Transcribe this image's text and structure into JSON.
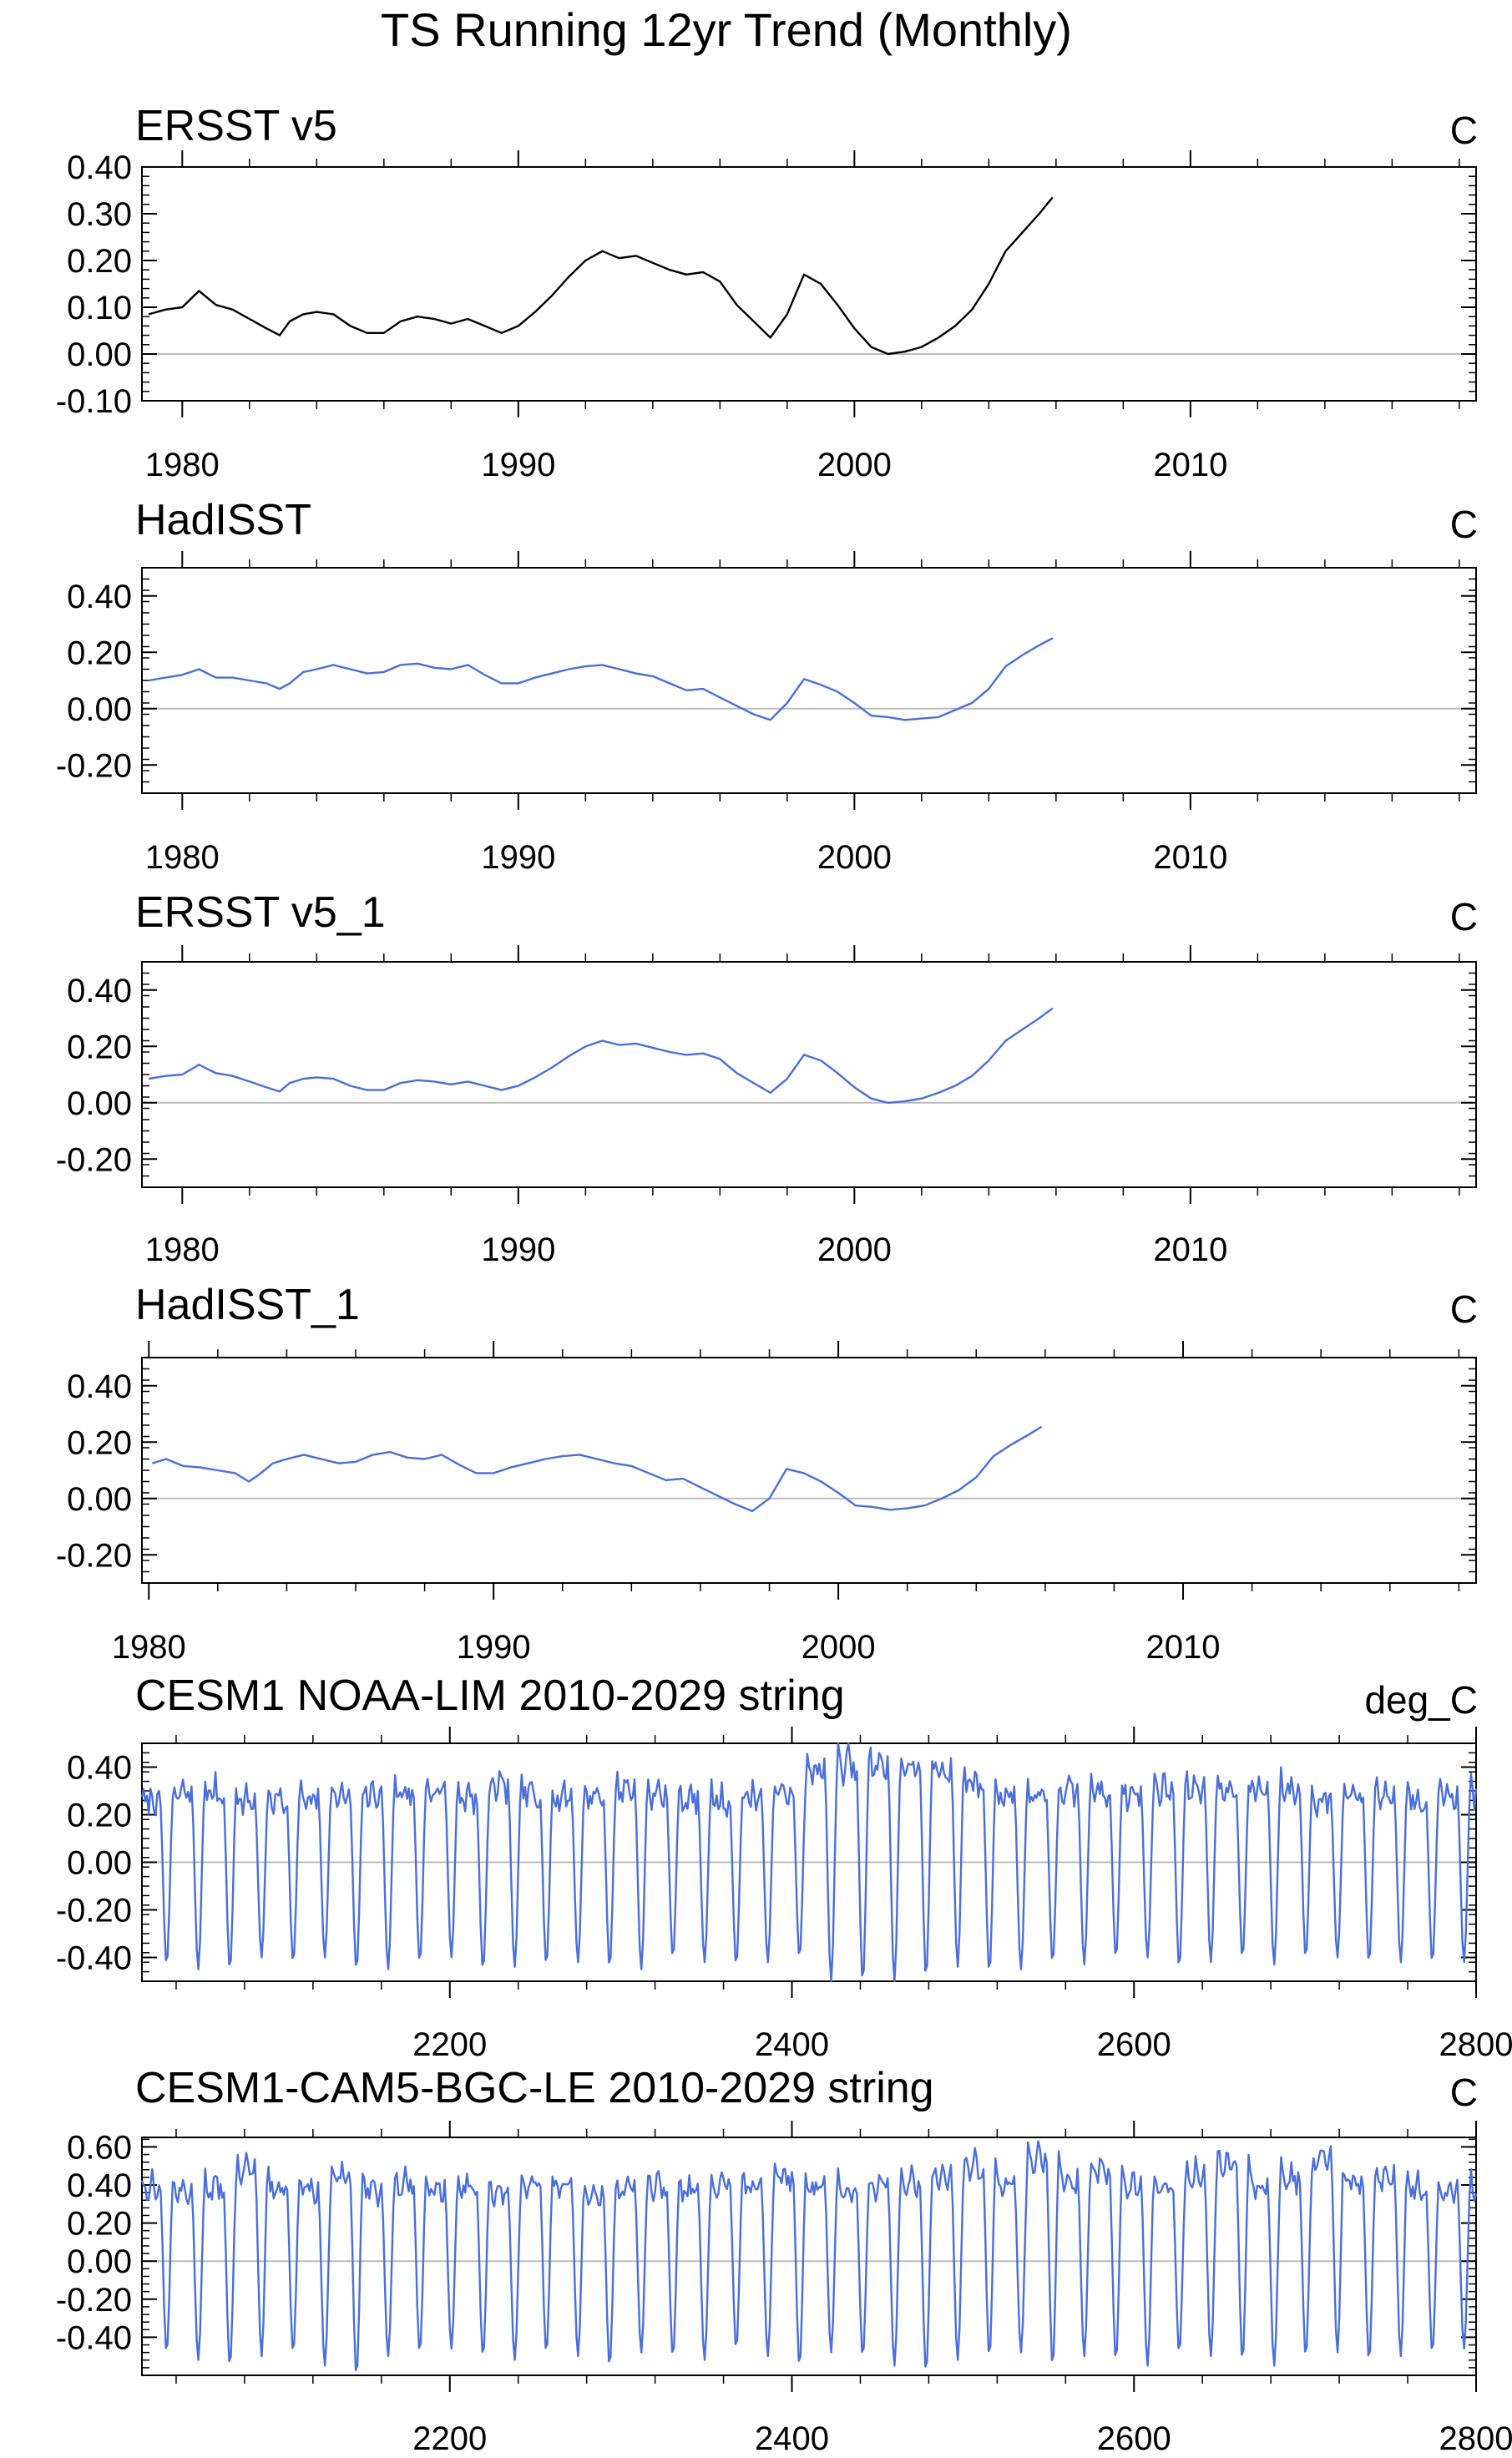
{
  "figure": {
    "title": "TS Running 12yr Trend (Monthly)"
  },
  "chart_data": [
    {
      "type": "line",
      "title": "ERSST v5",
      "units": "C",
      "line_color": "#000000",
      "xlim": [
        1978.8,
        2018.5
      ],
      "ylim": [
        -0.1,
        0.4
      ],
      "xticks": [
        1980,
        1990,
        2000,
        2010
      ],
      "yticks": [
        -0.1,
        0.0,
        0.1,
        0.2,
        0.3,
        0.4
      ],
      "ytick_labels": [
        "-0.10",
        "0.00",
        "0.10",
        "0.20",
        "0.30",
        "0.40"
      ],
      "series": [
        {
          "name": "ERSST v5",
          "x": [
            1979.0,
            1979.5,
            1980.0,
            1980.5,
            1981.0,
            1981.5,
            1982.0,
            1982.5,
            1982.9,
            1983.2,
            1983.6,
            1984.0,
            1984.5,
            1985.0,
            1985.5,
            1986.0,
            1986.5,
            1987.0,
            1987.5,
            1988.0,
            1988.5,
            1989.0,
            1989.5,
            1990.0,
            1990.5,
            1991.0,
            1991.5,
            1992.0,
            1992.5,
            1993.0,
            1993.5,
            1994.0,
            1994.5,
            1995.0,
            1995.5,
            1996.0,
            1996.5,
            1997.0,
            1997.5,
            1998.0,
            1998.5,
            1999.0,
            1999.5,
            2000.0,
            2000.5,
            2001.0,
            2001.5,
            2002.0,
            2002.5,
            2003.0,
            2003.5,
            2004.0,
            2004.5,
            2005.0,
            2005.5,
            2005.9
          ],
          "y": [
            0.085,
            0.095,
            0.1,
            0.135,
            0.105,
            0.095,
            0.075,
            0.055,
            0.04,
            0.07,
            0.085,
            0.09,
            0.085,
            0.06,
            0.045,
            0.045,
            0.07,
            0.08,
            0.075,
            0.065,
            0.075,
            0.06,
            0.045,
            0.06,
            0.09,
            0.125,
            0.165,
            0.2,
            0.22,
            0.205,
            0.21,
            0.195,
            0.18,
            0.17,
            0.175,
            0.155,
            0.105,
            0.07,
            0.035,
            0.085,
            0.17,
            0.15,
            0.105,
            0.055,
            0.015,
            0.0,
            0.005,
            0.015,
            0.035,
            0.06,
            0.095,
            0.15,
            0.22,
            0.26,
            0.3,
            0.335
          ]
        }
      ]
    },
    {
      "type": "line",
      "title": "HadISST",
      "units": "C",
      "line_color": "#4a6fdc",
      "xlim": [
        1978.8,
        2018.5
      ],
      "ylim": [
        -0.3,
        0.5
      ],
      "xticks": [
        1980,
        1990,
        2000,
        2010
      ],
      "yticks": [
        -0.2,
        0.0,
        0.2,
        0.4
      ],
      "ytick_labels": [
        "-0.20",
        "0.00",
        "0.20",
        "0.40"
      ],
      "series": [
        {
          "name": "HadISST",
          "x": [
            1979.0,
            1979.5,
            1980.0,
            1980.5,
            1981.0,
            1981.5,
            1982.0,
            1982.5,
            1982.9,
            1983.2,
            1983.6,
            1984.0,
            1984.5,
            1985.0,
            1985.5,
            1986.0,
            1986.5,
            1987.0,
            1987.5,
            1988.0,
            1988.5,
            1989.0,
            1989.5,
            1990.0,
            1990.5,
            1991.0,
            1991.5,
            1992.0,
            1992.5,
            1993.0,
            1993.5,
            1994.0,
            1994.5,
            1995.0,
            1995.5,
            1996.0,
            1996.5,
            1997.0,
            1997.5,
            1998.0,
            1998.5,
            1999.0,
            1999.5,
            2000.0,
            2000.5,
            2001.0,
            2001.5,
            2002.0,
            2002.5,
            2003.0,
            2003.5,
            2004.0,
            2004.5,
            2005.0,
            2005.5,
            2005.9
          ],
          "y": [
            0.1,
            0.11,
            0.12,
            0.14,
            0.11,
            0.11,
            0.1,
            0.09,
            0.07,
            0.09,
            0.13,
            0.14,
            0.155,
            0.14,
            0.125,
            0.13,
            0.155,
            0.16,
            0.145,
            0.14,
            0.155,
            0.12,
            0.09,
            0.09,
            0.11,
            0.125,
            0.14,
            0.15,
            0.155,
            0.14,
            0.125,
            0.115,
            0.09,
            0.065,
            0.07,
            0.04,
            0.01,
            -0.02,
            -0.04,
            0.02,
            0.105,
            0.085,
            0.06,
            0.02,
            -0.025,
            -0.03,
            -0.04,
            -0.035,
            -0.03,
            -0.005,
            0.02,
            0.07,
            0.15,
            0.19,
            0.225,
            0.25
          ]
        }
      ]
    },
    {
      "type": "line",
      "title": "ERSST v5_1",
      "units": "C",
      "line_color": "#4a6fdc",
      "xlim": [
        1978.8,
        2018.5
      ],
      "ylim": [
        -0.3,
        0.5
      ],
      "xticks": [
        1980,
        1990,
        2000,
        2010
      ],
      "yticks": [
        -0.2,
        0.0,
        0.2,
        0.4
      ],
      "ytick_labels": [
        "-0.20",
        "0.00",
        "0.20",
        "0.40"
      ],
      "series": [
        {
          "name": "ERSST v5_1",
          "x": [
            1979.0,
            1979.5,
            1980.0,
            1980.5,
            1981.0,
            1981.5,
            1982.0,
            1982.5,
            1982.9,
            1983.2,
            1983.6,
            1984.0,
            1984.5,
            1985.0,
            1985.5,
            1986.0,
            1986.5,
            1987.0,
            1987.5,
            1988.0,
            1988.5,
            1989.0,
            1989.5,
            1990.0,
            1990.5,
            1991.0,
            1991.5,
            1992.0,
            1992.5,
            1993.0,
            1993.5,
            1994.0,
            1994.5,
            1995.0,
            1995.5,
            1996.0,
            1996.5,
            1997.0,
            1997.5,
            1998.0,
            1998.5,
            1999.0,
            1999.5,
            2000.0,
            2000.5,
            2001.0,
            2001.5,
            2002.0,
            2002.5,
            2003.0,
            2003.5,
            2004.0,
            2004.5,
            2005.0,
            2005.5,
            2005.9
          ],
          "y": [
            0.085,
            0.095,
            0.1,
            0.135,
            0.105,
            0.095,
            0.075,
            0.055,
            0.04,
            0.07,
            0.085,
            0.09,
            0.085,
            0.06,
            0.045,
            0.045,
            0.07,
            0.08,
            0.075,
            0.065,
            0.075,
            0.06,
            0.045,
            0.06,
            0.09,
            0.125,
            0.165,
            0.2,
            0.22,
            0.205,
            0.21,
            0.195,
            0.18,
            0.17,
            0.175,
            0.155,
            0.105,
            0.07,
            0.035,
            0.085,
            0.17,
            0.15,
            0.105,
            0.055,
            0.015,
            0.0,
            0.005,
            0.015,
            0.035,
            0.06,
            0.095,
            0.15,
            0.22,
            0.26,
            0.3,
            0.335
          ]
        }
      ]
    },
    {
      "type": "line",
      "title": "HadISST_1",
      "units": "C",
      "line_color": "#4a6fdc",
      "xlim": [
        1979.8,
        2018.5
      ],
      "ylim": [
        -0.3,
        0.5
      ],
      "xticks": [
        1980,
        1990,
        2000,
        2010
      ],
      "yticks": [
        -0.2,
        0.0,
        0.2,
        0.4
      ],
      "ytick_labels": [
        "-0.20",
        "0.00",
        "0.20",
        "0.40"
      ],
      "series": [
        {
          "name": "HadISST_1",
          "x": [
            1980.1,
            1980.5,
            1981.0,
            1981.5,
            1982.0,
            1982.5,
            1982.9,
            1983.2,
            1983.6,
            1984.0,
            1984.5,
            1985.0,
            1985.5,
            1986.0,
            1986.5,
            1987.0,
            1987.5,
            1988.0,
            1988.5,
            1989.0,
            1989.5,
            1990.0,
            1990.5,
            1991.0,
            1991.5,
            1992.0,
            1992.5,
            1993.0,
            1993.5,
            1994.0,
            1994.5,
            1995.0,
            1995.5,
            1996.0,
            1996.5,
            1997.0,
            1997.5,
            1998.0,
            1998.5,
            1999.0,
            1999.5,
            2000.0,
            2000.5,
            2001.0,
            2001.5,
            2002.0,
            2002.5,
            2003.0,
            2003.5,
            2004.0,
            2004.5,
            2005.0,
            2005.5,
            2005.9
          ],
          "y": [
            0.125,
            0.14,
            0.115,
            0.11,
            0.1,
            0.09,
            0.06,
            0.085,
            0.125,
            0.14,
            0.155,
            0.14,
            0.125,
            0.13,
            0.155,
            0.165,
            0.145,
            0.14,
            0.155,
            0.12,
            0.09,
            0.09,
            0.11,
            0.125,
            0.14,
            0.15,
            0.155,
            0.14,
            0.125,
            0.115,
            0.09,
            0.065,
            0.07,
            0.04,
            0.01,
            -0.02,
            -0.045,
            0.0,
            0.105,
            0.09,
            0.06,
            0.02,
            -0.025,
            -0.03,
            -0.04,
            -0.035,
            -0.025,
            0.0,
            0.03,
            0.075,
            0.15,
            0.19,
            0.225,
            0.255
          ]
        }
      ]
    },
    {
      "type": "line",
      "title": "CESM1 NOAA-LIM 2010-2029 string",
      "units": "deg_C",
      "line_color": "#4a6fdc",
      "xlim": [
        2020,
        2800
      ],
      "ylim": [
        -0.5,
        0.5
      ],
      "xticks": [
        2200,
        2400,
        2600,
        2800
      ],
      "yticks": [
        -0.4,
        -0.2,
        0.0,
        0.2,
        0.4
      ],
      "ytick_labels": [
        "-0.40",
        "-0.20",
        "0.00",
        "0.20",
        "0.40"
      ],
      "oscillation": {
        "period": 18.5,
        "start": 2020,
        "end": 2800,
        "seed": 7,
        "peak": 0.33,
        "trough": -0.43
      },
      "series": [
        {
          "name": "CESM1 NOAA-LIM 2010-2029 string",
          "cycle_peaks": [
            0.3,
            0.33,
            0.34,
            0.3,
            0.3,
            0.32,
            0.31,
            0.33,
            0.34,
            0.35,
            0.31,
            0.36,
            0.33,
            0.32,
            0.33,
            0.36,
            0.33,
            0.31,
            0.3,
            0.32,
            0.34,
            0.45,
            0.47,
            0.46,
            0.46,
            0.45,
            0.38,
            0.33,
            0.33,
            0.34,
            0.35,
            0.33,
            0.36,
            0.37,
            0.35,
            0.35,
            0.35,
            0.3,
            0.34,
            0.33,
            0.32,
            0.33
          ],
          "cycle_troughs": [
            -0.43,
            -0.45,
            -0.45,
            -0.4,
            -0.42,
            -0.4,
            -0.45,
            -0.45,
            -0.42,
            -0.4,
            -0.45,
            -0.44,
            -0.43,
            -0.42,
            -0.44,
            -0.45,
            -0.4,
            -0.42,
            -0.43,
            -0.42,
            -0.4,
            -0.5,
            -0.5,
            -0.5,
            -0.48,
            -0.44,
            -0.46,
            -0.45,
            -0.42,
            -0.43,
            -0.4,
            -0.4,
            -0.44,
            -0.42,
            -0.4,
            -0.43,
            -0.4,
            -0.4,
            -0.42,
            -0.42,
            -0.42,
            -0.42
          ]
        }
      ]
    },
    {
      "type": "line",
      "title": "CESM1-CAM5-BGC-LE 2010-2029 string",
      "units": "C",
      "line_color": "#4a6fdc",
      "xlim": [
        2020,
        2800
      ],
      "ylim": [
        -0.6,
        0.65
      ],
      "xticks": [
        2200,
        2400,
        2600,
        2800
      ],
      "yticks": [
        -0.4,
        -0.2,
        0.0,
        0.2,
        0.4,
        0.6
      ],
      "ytick_labels": [
        "-0.40",
        "-0.20",
        "0.00",
        "0.20",
        "0.40",
        "0.60"
      ],
      "oscillation": {
        "period": 18.5,
        "start": 2020,
        "end": 2800,
        "seed": 13,
        "peak": 0.45,
        "trough": -0.48
      },
      "series": [
        {
          "name": "CESM1-CAM5-BGC-LE 2010-2029 string",
          "cycle_peaks": [
            0.45,
            0.42,
            0.45,
            0.55,
            0.46,
            0.43,
            0.5,
            0.42,
            0.48,
            0.44,
            0.45,
            0.4,
            0.48,
            0.45,
            0.42,
            0.44,
            0.45,
            0.42,
            0.48,
            0.45,
            0.5,
            0.46,
            0.44,
            0.45,
            0.48,
            0.52,
            0.58,
            0.46,
            0.62,
            0.5,
            0.54,
            0.46,
            0.45,
            0.52,
            0.6,
            0.45,
            0.5,
            0.62,
            0.48,
            0.52,
            0.45,
            0.44
          ],
          "cycle_troughs": [
            -0.48,
            -0.52,
            -0.55,
            -0.5,
            -0.48,
            -0.55,
            -0.6,
            -0.5,
            -0.48,
            -0.46,
            -0.5,
            -0.52,
            -0.48,
            -0.5,
            -0.55,
            -0.48,
            -0.5,
            -0.52,
            -0.46,
            -0.5,
            -0.55,
            -0.48,
            -0.5,
            -0.55,
            -0.58,
            -0.52,
            -0.5,
            -0.48,
            -0.55,
            -0.5,
            -0.52,
            -0.55,
            -0.48,
            -0.5,
            -0.52,
            -0.55,
            -0.5,
            -0.48,
            -0.52,
            -0.5,
            -0.48,
            -0.46
          ]
        }
      ]
    }
  ]
}
